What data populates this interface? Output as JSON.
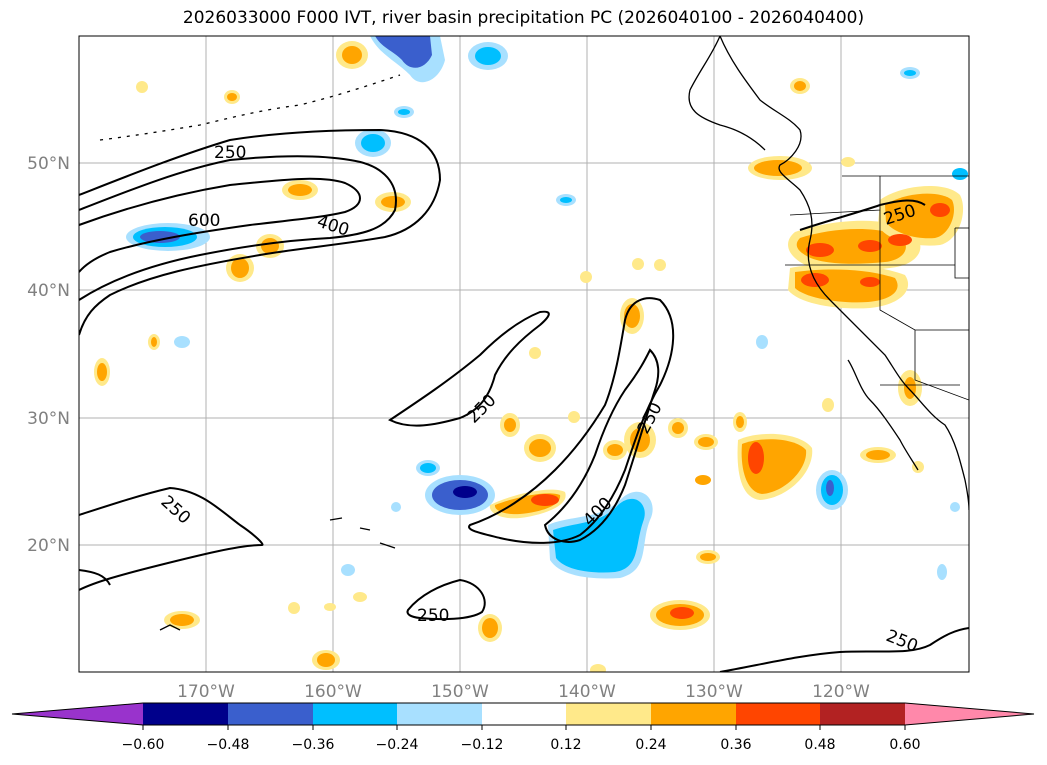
{
  "title": "2026033000 F000 IVT, river basin precipitation PC (2026040100 - 2026040400)",
  "map": {
    "lon_ticks": [
      "170°W",
      "160°W",
      "150°W",
      "140°W",
      "130°W",
      "120°W"
    ],
    "lat_ticks": [
      "50°N",
      "40°N",
      "30°N",
      "20°N"
    ],
    "contour_labels": [
      "250",
      "600",
      "400",
      "250",
      "250",
      "400",
      "250",
      "250",
      "250",
      "250"
    ]
  },
  "colorbar": {
    "ticks": [
      "−0.60",
      "−0.48",
      "−0.36",
      "−0.24",
      "−0.12",
      "0.12",
      "0.24",
      "0.36",
      "0.48",
      "0.60"
    ],
    "colors": [
      "#9933cc",
      "#00008b",
      "#3a5fcd",
      "#00bfff",
      "#a8e0ff",
      "#ffffff",
      "#ffe98a",
      "#ffa500",
      "#ff4500",
      "#b22222",
      "#ff88aa"
    ]
  },
  "palette": {
    "pos1": "#ffe98a",
    "pos2": "#ffa500",
    "pos3": "#ff4500",
    "neg1": "#a8e0ff",
    "neg2": "#00bfff",
    "neg3": "#3a5fcd",
    "neg4": "#00008b"
  }
}
